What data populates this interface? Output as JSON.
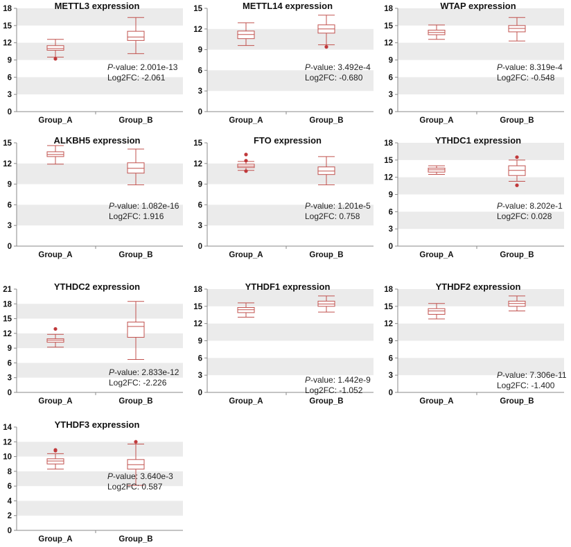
{
  "colors": {
    "box": "#c0504d",
    "outlier": "#c0393b",
    "band": "#ebebeb",
    "axis": "#888888"
  },
  "chart_data": [
    {
      "type": "box",
      "title": "METTL3 expression",
      "categories": [
        "Group_A",
        "Group_B"
      ],
      "ylim": [
        0,
        18
      ],
      "yticks": [
        0,
        3,
        6,
        9,
        12,
        15,
        18
      ],
      "boxes": [
        {
          "whisker_low": 9.5,
          "q1": 10.7,
          "median": 11.0,
          "q3": 11.5,
          "whisker_high": 12.6,
          "outliers": [
            9.2
          ]
        },
        {
          "whisker_low": 10.1,
          "q1": 12.4,
          "median": 13.0,
          "q3": 14.0,
          "whisker_high": 16.4,
          "outliers": []
        }
      ],
      "pvalue": "2.001e-13",
      "log2fc": "-2.061"
    },
    {
      "type": "box",
      "title": "METTL14 expression",
      "categories": [
        "Group_A",
        "Group_B"
      ],
      "ylim": [
        0,
        15
      ],
      "yticks": [
        0,
        3,
        6,
        9,
        12,
        15
      ],
      "boxes": [
        {
          "whisker_low": 9.6,
          "q1": 10.6,
          "median": 11.2,
          "q3": 11.7,
          "whisker_high": 12.9,
          "outliers": []
        },
        {
          "whisker_low": 9.7,
          "q1": 11.4,
          "median": 12.0,
          "q3": 12.6,
          "whisker_high": 14.0,
          "outliers": [
            9.4
          ]
        }
      ],
      "pvalue": "3.492e-4",
      "log2fc": "-0.680"
    },
    {
      "type": "box",
      "title": "WTAP expression",
      "categories": [
        "Group_A",
        "Group_B"
      ],
      "ylim": [
        0,
        18
      ],
      "yticks": [
        0,
        3,
        6,
        9,
        12,
        15,
        18
      ],
      "boxes": [
        {
          "whisker_low": 12.6,
          "q1": 13.4,
          "median": 13.8,
          "q3": 14.2,
          "whisker_high": 15.1,
          "outliers": []
        },
        {
          "whisker_low": 12.3,
          "q1": 13.9,
          "median": 14.5,
          "q3": 15.0,
          "whisker_high": 16.4,
          "outliers": []
        }
      ],
      "pvalue": "8.319e-4",
      "log2fc": "-0.548"
    },
    {
      "type": "box",
      "title": "ALKBH5 expression",
      "categories": [
        "Group_A",
        "Group_B"
      ],
      "ylim": [
        0,
        15
      ],
      "yticks": [
        0,
        3,
        6,
        9,
        12,
        15
      ],
      "boxes": [
        {
          "whisker_low": 11.9,
          "q1": 13.0,
          "median": 13.3,
          "q3": 13.7,
          "whisker_high": 14.6,
          "outliers": []
        },
        {
          "whisker_low": 8.9,
          "q1": 10.6,
          "median": 11.3,
          "q3": 12.1,
          "whisker_high": 14.1,
          "outliers": []
        }
      ],
      "pvalue": "1.082e-16",
      "log2fc": "1.916"
    },
    {
      "type": "box",
      "title": "FTO expression",
      "categories": [
        "Group_A",
        "Group_B"
      ],
      "ylim": [
        0,
        15
      ],
      "yticks": [
        0,
        3,
        6,
        9,
        12,
        15
      ],
      "boxes": [
        {
          "whisker_low": 11.0,
          "q1": 11.4,
          "median": 11.6,
          "q3": 11.9,
          "whisker_high": 12.3,
          "outliers": [
            10.9,
            12.4,
            13.3
          ]
        },
        {
          "whisker_low": 8.9,
          "q1": 10.4,
          "median": 10.9,
          "q3": 11.5,
          "whisker_high": 13.0,
          "outliers": []
        }
      ],
      "pvalue": "1.201e-5",
      "log2fc": "0.758"
    },
    {
      "type": "box",
      "title": "YTHDC1 expression",
      "categories": [
        "Group_A",
        "Group_B"
      ],
      "ylim": [
        0,
        18
      ],
      "yticks": [
        0,
        3,
        6,
        9,
        12,
        15,
        18
      ],
      "boxes": [
        {
          "whisker_low": 12.5,
          "q1": 12.9,
          "median": 13.3,
          "q3": 13.6,
          "whisker_high": 14.0,
          "outliers": []
        },
        {
          "whisker_low": 11.3,
          "q1": 12.3,
          "median": 13.2,
          "q3": 14.0,
          "whisker_high": 15.0,
          "outliers": [
            10.6,
            15.5
          ]
        }
      ],
      "pvalue": "8.202e-1",
      "log2fc": "0.028"
    },
    {
      "type": "box",
      "title": "YTHDC2 expression",
      "categories": [
        "Group_A",
        "Group_B"
      ],
      "ylim": [
        0,
        21
      ],
      "yticks": [
        0,
        3,
        6,
        9,
        12,
        15,
        18,
        21
      ],
      "boxes": [
        {
          "whisker_low": 9.2,
          "q1": 10.2,
          "median": 10.6,
          "q3": 10.9,
          "whisker_high": 11.8,
          "outliers": [
            12.9
          ]
        },
        {
          "whisker_low": 6.7,
          "q1": 11.2,
          "median": 13.4,
          "q3": 14.3,
          "whisker_high": 18.5,
          "outliers": []
        }
      ],
      "pvalue": "2.833e-12",
      "log2fc": "-2.226"
    },
    {
      "type": "box",
      "title": "YTHDF1 expression",
      "categories": [
        "Group_A",
        "Group_B"
      ],
      "ylim": [
        0,
        18
      ],
      "yticks": [
        0,
        3,
        6,
        9,
        12,
        15,
        18
      ],
      "boxes": [
        {
          "whisker_low": 13.1,
          "q1": 13.9,
          "median": 14.4,
          "q3": 14.8,
          "whisker_high": 15.6,
          "outliers": []
        },
        {
          "whisker_low": 14.0,
          "q1": 15.0,
          "median": 15.4,
          "q3": 15.9,
          "whisker_high": 16.8,
          "outliers": []
        }
      ],
      "pvalue": "1.442e-9",
      "log2fc": "-1.052"
    },
    {
      "type": "box",
      "title": "YTHDF2 expression",
      "categories": [
        "Group_A",
        "Group_B"
      ],
      "ylim": [
        0,
        18
      ],
      "yticks": [
        0,
        3,
        6,
        9,
        12,
        15,
        18
      ],
      "boxes": [
        {
          "whisker_low": 12.8,
          "q1": 13.6,
          "median": 14.2,
          "q3": 14.6,
          "whisker_high": 15.5,
          "outliers": []
        },
        {
          "whisker_low": 14.2,
          "q1": 15.0,
          "median": 15.5,
          "q3": 15.9,
          "whisker_high": 16.8,
          "outliers": []
        }
      ],
      "pvalue": "7.306e-11",
      "log2fc": "-1.400"
    },
    {
      "type": "box",
      "title": "YTHDF3 expression",
      "categories": [
        "Group_A",
        "Group_B"
      ],
      "ylim": [
        0,
        14
      ],
      "yticks": [
        0,
        2,
        4,
        6,
        8,
        10,
        12,
        14
      ],
      "boxes": [
        {
          "whisker_low": 8.3,
          "q1": 9.0,
          "median": 9.4,
          "q3": 9.7,
          "whisker_high": 10.4,
          "outliers": [
            10.8,
            10.9
          ]
        },
        {
          "whisker_low": 6.1,
          "q1": 8.3,
          "median": 8.9,
          "q3": 9.6,
          "whisker_high": 11.7,
          "outliers": [
            12.0
          ]
        }
      ],
      "pvalue": "3.640e-3",
      "log2fc": "0.587"
    }
  ],
  "labels": {
    "pvalue_prefix_italic": "P",
    "pvalue_prefix_rest": "-value: ",
    "log2fc_prefix": "Log2FC: "
  }
}
